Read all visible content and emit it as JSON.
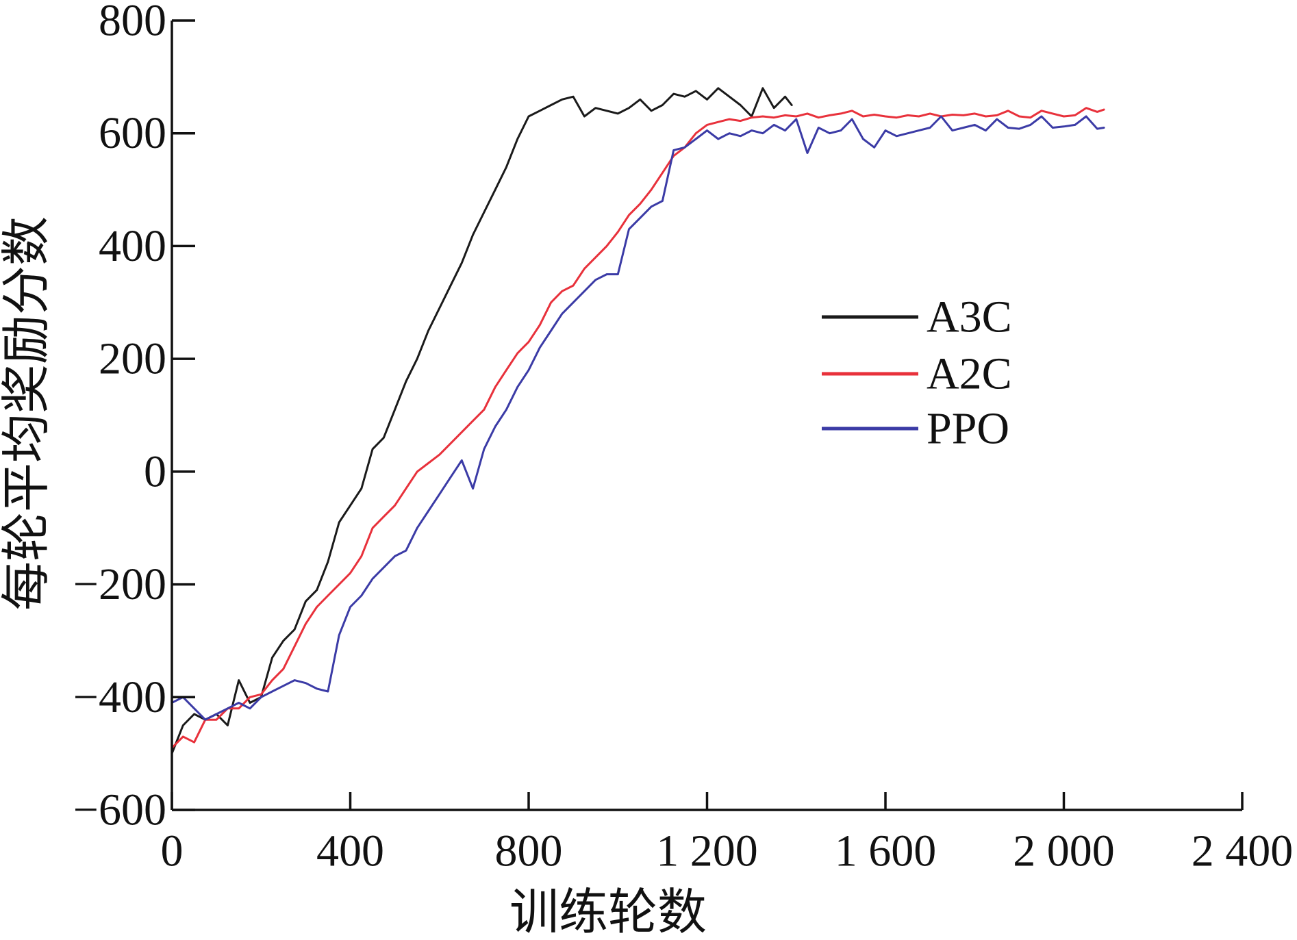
{
  "chart_data": {
    "type": "line",
    "title": "",
    "xlabel": "训练轮数",
    "ylabel": "每轮平均奖励分数",
    "xlim": [
      0,
      2400
    ],
    "ylim": [
      -600,
      800
    ],
    "xticks": [
      0,
      400,
      800,
      1200,
      1600,
      2000,
      2400
    ],
    "xtick_labels": [
      "0",
      "400",
      "800",
      "1 200",
      "1 600",
      "2 000",
      "2 400"
    ],
    "yticks": [
      800,
      600,
      400,
      200,
      0,
      -200,
      -400,
      -600
    ],
    "ytick_labels": [
      "800",
      "600",
      "400",
      "200",
      "0",
      "−200",
      "−400",
      "−600"
    ],
    "grid": false,
    "legend_position": "right-center",
    "series": [
      {
        "name": "A3C",
        "color": "#1a1a1a",
        "x": [
          0,
          25,
          50,
          75,
          100,
          125,
          150,
          175,
          200,
          225,
          250,
          275,
          300,
          325,
          350,
          375,
          400,
          425,
          450,
          475,
          500,
          525,
          550,
          575,
          600,
          625,
          650,
          675,
          700,
          725,
          750,
          775,
          800,
          825,
          850,
          875,
          900,
          925,
          950,
          975,
          1000,
          1025,
          1050,
          1075,
          1100,
          1125,
          1150,
          1175,
          1200,
          1225,
          1250,
          1275,
          1300,
          1325,
          1350,
          1375,
          1390
        ],
        "y": [
          -500,
          -450,
          -430,
          -440,
          -430,
          -450,
          -370,
          -410,
          -400,
          -330,
          -300,
          -280,
          -230,
          -210,
          -160,
          -90,
          -60,
          -30,
          40,
          60,
          110,
          160,
          200,
          250,
          290,
          330,
          370,
          420,
          460,
          500,
          540,
          590,
          630,
          640,
          650,
          660,
          665,
          630,
          645,
          640,
          635,
          645,
          660,
          640,
          650,
          670,
          665,
          675,
          660,
          680,
          665,
          650,
          630,
          680,
          645,
          665,
          650
        ]
      },
      {
        "name": "A2C",
        "color": "#e8313b",
        "x": [
          0,
          25,
          50,
          75,
          100,
          125,
          150,
          175,
          200,
          225,
          250,
          275,
          300,
          325,
          350,
          375,
          400,
          425,
          450,
          475,
          500,
          525,
          550,
          575,
          600,
          625,
          650,
          675,
          700,
          725,
          750,
          775,
          800,
          825,
          850,
          875,
          900,
          925,
          950,
          975,
          1000,
          1025,
          1050,
          1075,
          1100,
          1125,
          1150,
          1175,
          1200,
          1225,
          1250,
          1275,
          1300,
          1325,
          1350,
          1375,
          1400,
          1425,
          1450,
          1475,
          1500,
          1525,
          1550,
          1575,
          1600,
          1625,
          1650,
          1675,
          1700,
          1725,
          1750,
          1775,
          1800,
          1825,
          1850,
          1875,
          1900,
          1925,
          1950,
          1975,
          2000,
          2025,
          2050,
          2075,
          2090
        ],
        "y": [
          -490,
          -470,
          -480,
          -440,
          -440,
          -420,
          -420,
          -400,
          -395,
          -370,
          -350,
          -310,
          -270,
          -240,
          -220,
          -200,
          -180,
          -150,
          -100,
          -80,
          -60,
          -30,
          0,
          15,
          30,
          50,
          70,
          90,
          110,
          150,
          180,
          210,
          230,
          260,
          300,
          320,
          330,
          360,
          380,
          400,
          425,
          455,
          475,
          500,
          530,
          560,
          575,
          600,
          615,
          620,
          625,
          622,
          628,
          630,
          628,
          632,
          630,
          635,
          628,
          632,
          635,
          640,
          630,
          633,
          630,
          628,
          632,
          630,
          635,
          630,
          633,
          632,
          635,
          630,
          632,
          640,
          630,
          628,
          640,
          635,
          630,
          632,
          645,
          638,
          642
        ]
      },
      {
        "name": "PPO",
        "color": "#3b3ba6",
        "x": [
          0,
          25,
          50,
          75,
          100,
          125,
          150,
          175,
          200,
          225,
          250,
          275,
          300,
          325,
          350,
          375,
          400,
          425,
          450,
          475,
          500,
          525,
          550,
          575,
          600,
          625,
          650,
          675,
          700,
          725,
          750,
          775,
          800,
          825,
          850,
          875,
          900,
          925,
          950,
          975,
          1000,
          1025,
          1050,
          1075,
          1100,
          1125,
          1150,
          1175,
          1200,
          1225,
          1250,
          1275,
          1300,
          1325,
          1350,
          1375,
          1400,
          1425,
          1450,
          1475,
          1500,
          1525,
          1550,
          1575,
          1600,
          1625,
          1650,
          1675,
          1700,
          1725,
          1750,
          1775,
          1800,
          1825,
          1850,
          1875,
          1900,
          1925,
          1950,
          1975,
          2000,
          2025,
          2050,
          2075,
          2090
        ],
        "y": [
          -410,
          -400,
          -420,
          -440,
          -430,
          -420,
          -410,
          -420,
          -400,
          -390,
          -380,
          -370,
          -375,
          -385,
          -390,
          -290,
          -240,
          -220,
          -190,
          -170,
          -150,
          -140,
          -100,
          -70,
          -40,
          -10,
          20,
          -30,
          40,
          80,
          110,
          150,
          180,
          220,
          250,
          280,
          300,
          320,
          340,
          350,
          350,
          430,
          450,
          470,
          480,
          570,
          575,
          590,
          605,
          590,
          600,
          595,
          605,
          600,
          615,
          605,
          625,
          565,
          610,
          600,
          605,
          625,
          590,
          575,
          605,
          595,
          600,
          605,
          610,
          630,
          605,
          610,
          615,
          605,
          625,
          610,
          608,
          615,
          630,
          610,
          612,
          615,
          630,
          608,
          610
        ]
      }
    ]
  }
}
